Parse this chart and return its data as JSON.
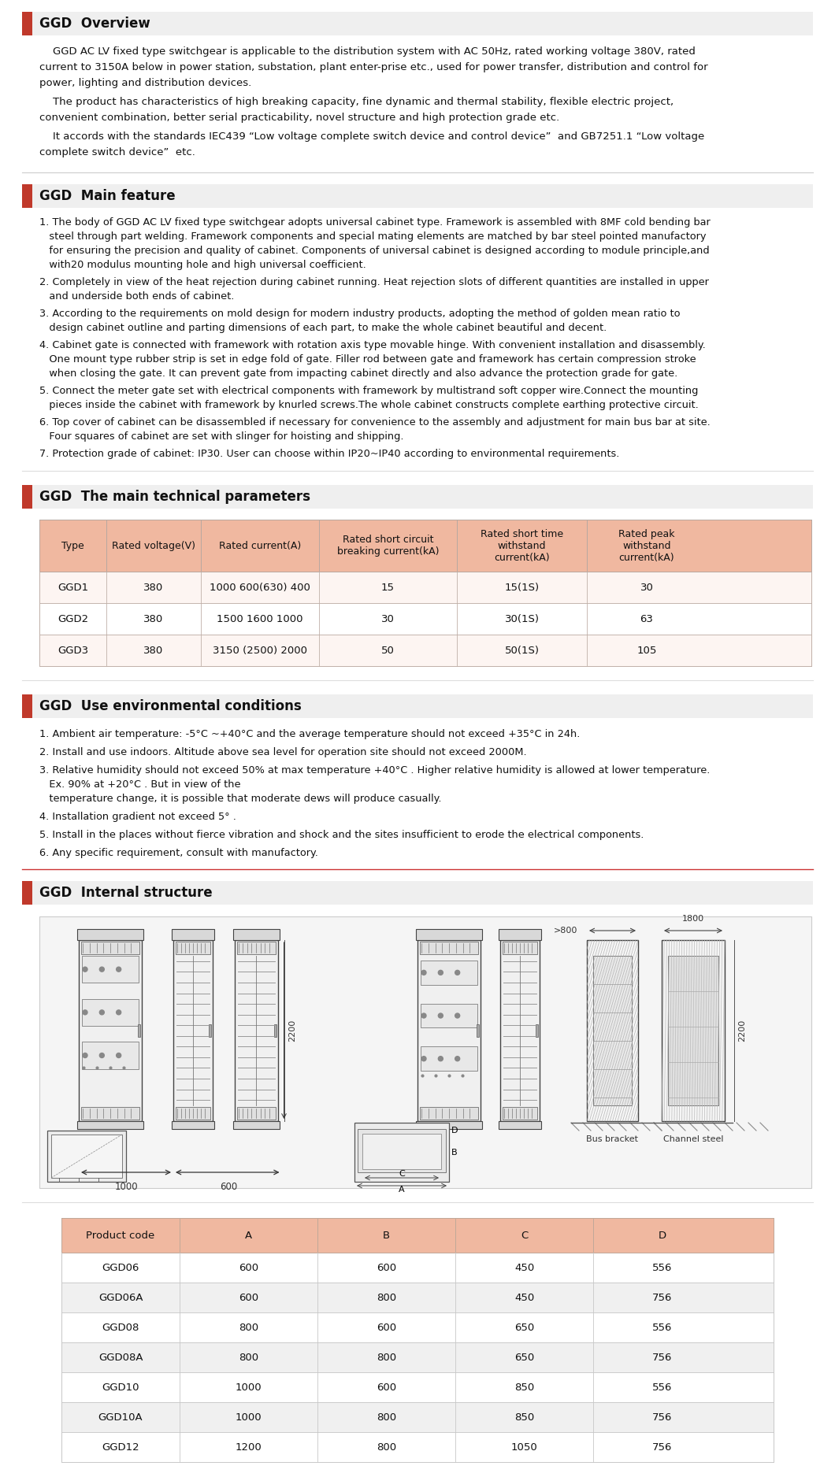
{
  "bg_color": "#ffffff",
  "section_header_bg": "#efefef",
  "red_color": "#c0392b",
  "section1_title": "GGD  Overview",
  "section1_paras": [
    [
      "    GGD AC LV fixed type switchgear is applicable to the distribution system with AC 50Hz, rated working voltage 380V, rated",
      "current to 3150A below in power station, substation, plant enter-prise etc., used for power transfer, distribution and control for",
      "power, lighting and distribution devices."
    ],
    [
      "    The product has characteristics of high breaking capacity, fine dynamic and thermal stability, flexible electric project,",
      "convenient combination, better serial practicability, novel structure and high protection grade etc."
    ],
    [
      "    It accords with the standards IEC439 “Low voltage complete switch device and control device”  and GB7251.1 “Low voltage",
      "complete switch device”  etc."
    ]
  ],
  "section2_title": "GGD  Main feature",
  "section2_items": [
    [
      "1. The body of GGD AC LV fixed type switchgear adopts universal cabinet type. Framework is assembled with 8MF cold bending bar",
      "   steel through part welding. Framework components and special mating elements are matched by bar steel pointed manufactory",
      "   for ensuring the precision and quality of cabinet. Components of universal cabinet is designed according to module principle,and",
      "   with20 modulus mounting hole and high universal coefficient."
    ],
    [
      "2. Completely in view of the heat rejection during cabinet running. Heat rejection slots of different quantities are installed in upper",
      "   and underside both ends of cabinet."
    ],
    [
      "3. According to the requirements on mold design for modern industry products, adopting the method of golden mean ratio to",
      "   design cabinet outline and parting dimensions of each part, to make the whole cabinet beautiful and decent."
    ],
    [
      "4. Cabinet gate is connected with framework with rotation axis type movable hinge. With convenient installation and disassembly.",
      "   One mount type rubber strip is set in edge fold of gate. Filler rod between gate and framework has certain compression stroke",
      "   when closing the gate. It can prevent gate from impacting cabinet directly and also advance the protection grade for gate."
    ],
    [
      "5. Connect the meter gate set with electrical components with framework by multistrand soft copper wire.Connect the mounting",
      "   pieces inside the cabinet with framework by knurled screws.The whole cabinet constructs complete earthing protective circuit."
    ],
    [
      "6. Top cover of cabinet can be disassembled if necessary for convenience to the assembly and adjustment for main bus bar at site.",
      "   Four squares of cabinet are set with slinger for hoisting and shipping."
    ],
    [
      "7. Protection grade of cabinet: IP30. User can choose within IP20~IP40 according to environmental requirements."
    ]
  ],
  "section3_title": "GGD  The main technical parameters",
  "table_header_bg": "#f0b8a0",
  "table_headers": [
    "Type",
    "Rated voltage(V)",
    "Rated current(A)",
    "Rated short circuit\nbreaking current(kA)",
    "Rated short time\nwithstand\ncurrent(kA)",
    "Rated peak\nwithstand\ncurrent(kA)"
  ],
  "table_data": [
    [
      "GGD1",
      "380",
      "1000 600(630) 400",
      "15",
      "15(1S)",
      "30"
    ],
    [
      "GGD2",
      "380",
      "1500 1600 1000",
      "30",
      "30(1S)",
      "63"
    ],
    [
      "GGD3",
      "380",
      "3150 (2500) 2000",
      "50",
      "50(1S)",
      "105"
    ]
  ],
  "section4_title": "GGD  Use environmental conditions",
  "section4_items": [
    [
      "1. Ambient air temperature: -5°C ~+40°C and the average temperature should not exceed +35°C in 24h."
    ],
    [
      "2. Install and use indoors. Altitude above sea level for operation site should not exceed 2000M."
    ],
    [
      "3. Relative humidity should not exceed 50% at max temperature +40°C . Higher relative humidity is allowed at lower temperature.",
      "   Ex. 90% at +20°C . But in view of the",
      "   temperature change, it is possible that moderate dews will produce casually."
    ],
    [
      "4. Installation gradient not exceed 5° ."
    ],
    [
      "5. Install in the places without fierce vibration and shock and the sites insufficient to erode the electrical components."
    ],
    [
      "6. Any specific requirement, consult with manufactory."
    ]
  ],
  "section5_title": "GGD  Internal structure",
  "product_table_header_bg": "#f0b8a0",
  "product_table_headers": [
    "Product code",
    "A",
    "B",
    "C",
    "D"
  ],
  "product_table_data": [
    [
      "GGD06",
      "600",
      "600",
      "450",
      "556"
    ],
    [
      "GGD06A",
      "600",
      "800",
      "450",
      "756"
    ],
    [
      "GGD08",
      "800",
      "600",
      "650",
      "556"
    ],
    [
      "GGD08A",
      "800",
      "800",
      "650",
      "756"
    ],
    [
      "GGD10",
      "1000",
      "600",
      "850",
      "556"
    ],
    [
      "GGD10A",
      "1000",
      "800",
      "850",
      "756"
    ],
    [
      "GGD12",
      "1200",
      "800",
      "1050",
      "756"
    ]
  ]
}
